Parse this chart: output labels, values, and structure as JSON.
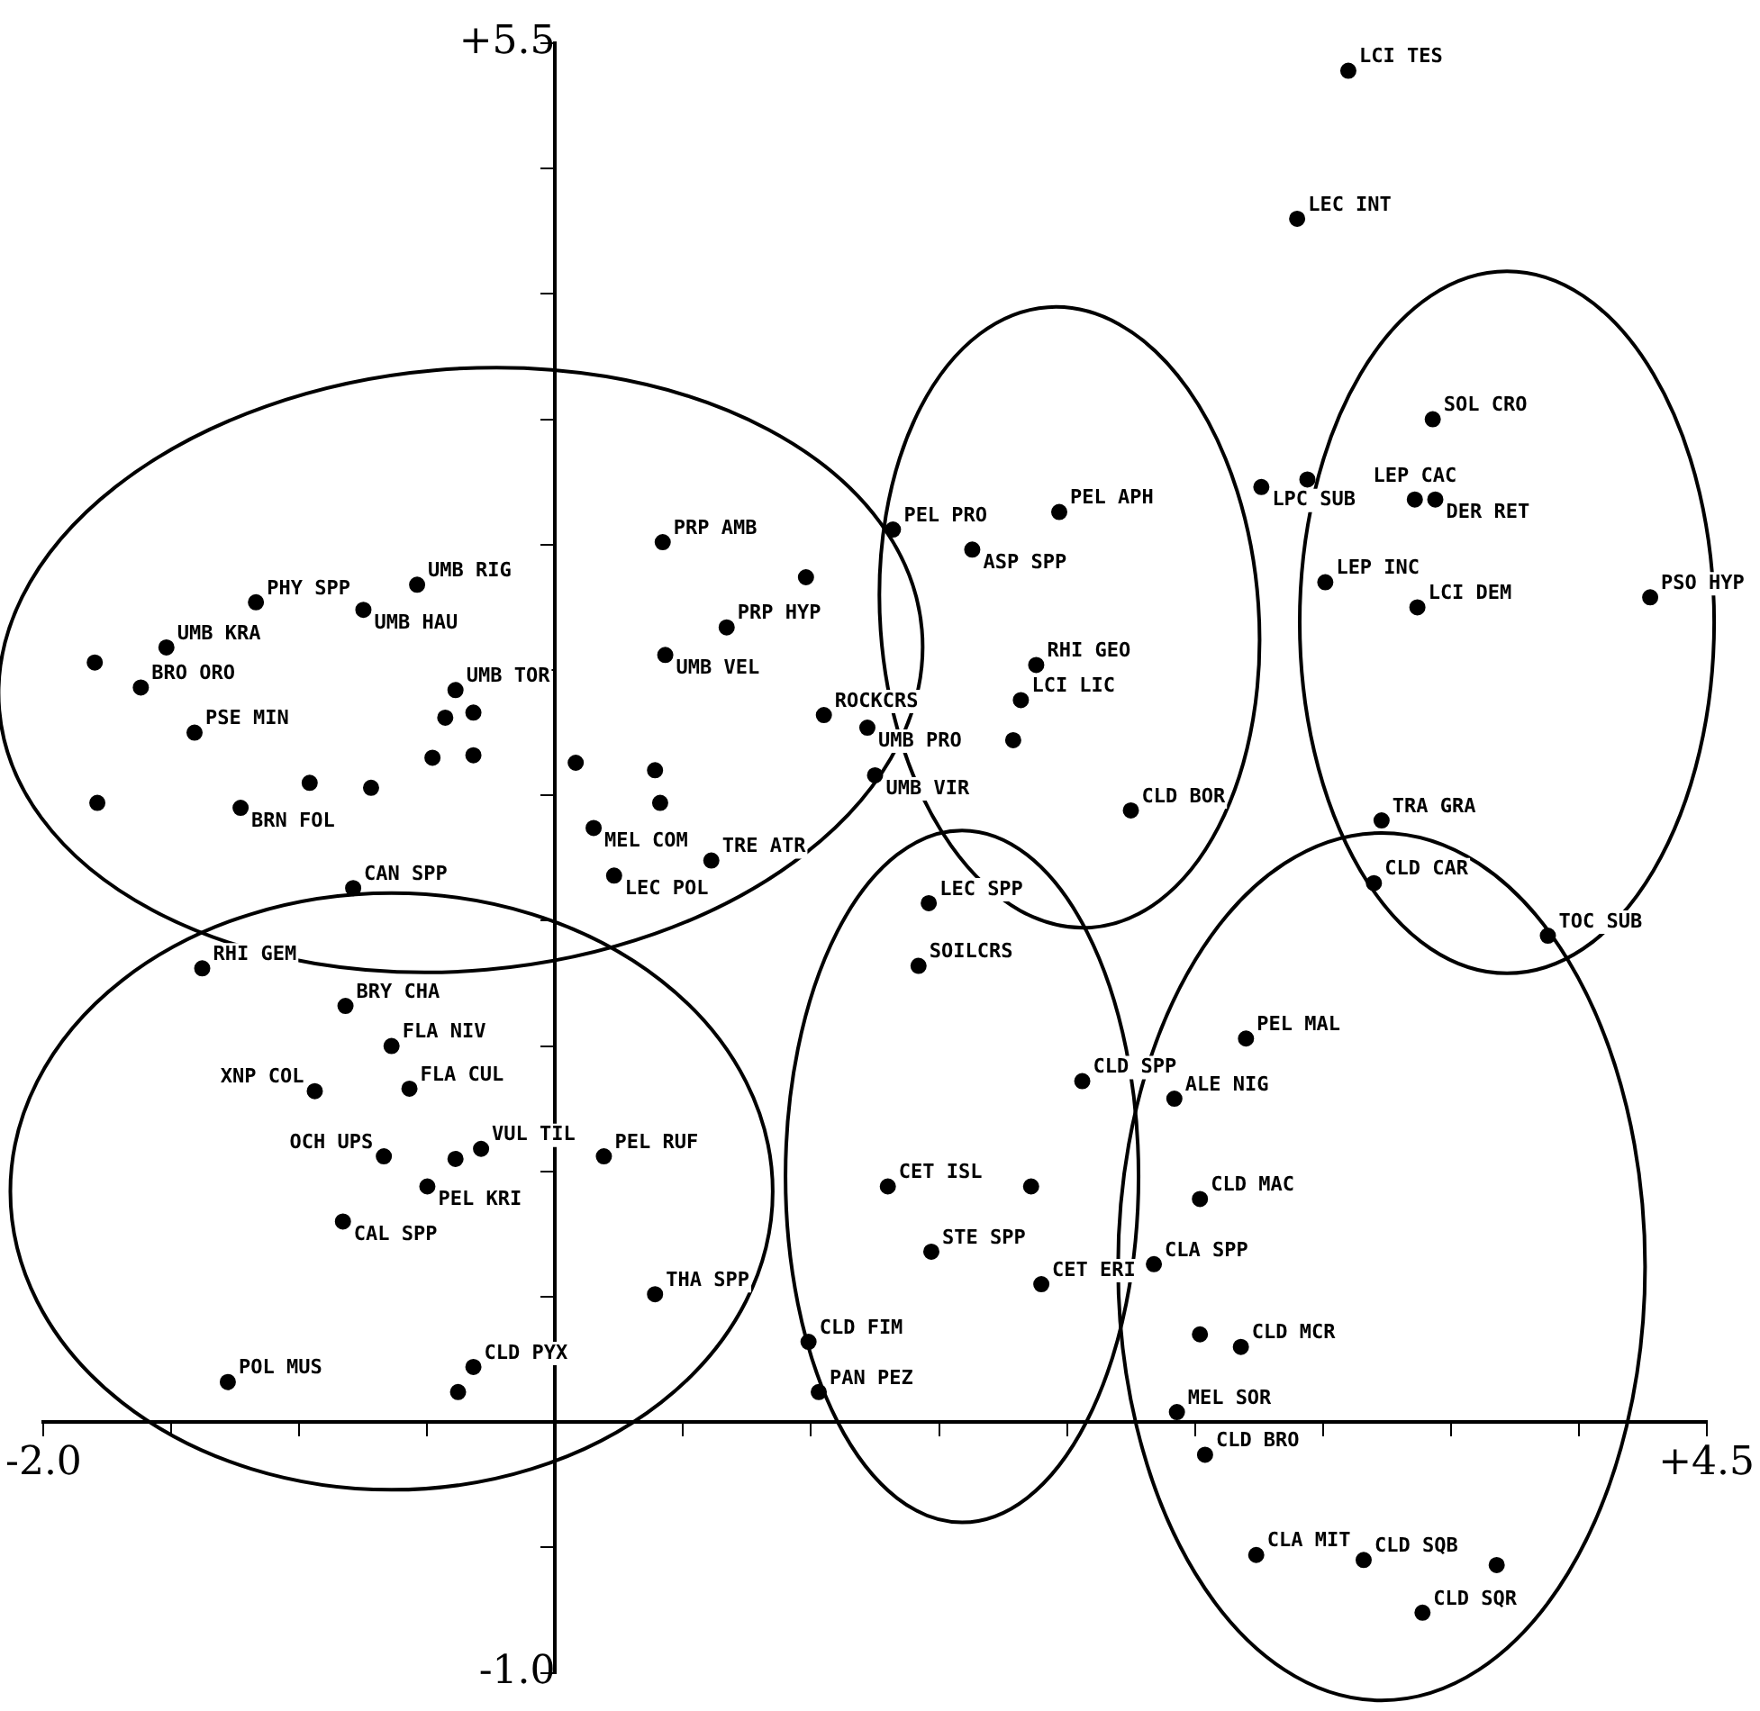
{
  "chart_data": {
    "type": "scatter",
    "marker": "circle",
    "color": "#000000",
    "xlim": [
      -2.0,
      4.5
    ],
    "ylim": [
      -1.0,
      5.5
    ],
    "xticks": [
      {
        "value": -2.0,
        "label": "-2.0"
      },
      {
        "value": -1.5,
        "label": null
      },
      {
        "value": -1.0,
        "label": null
      },
      {
        "value": -0.5,
        "label": null
      },
      {
        "value": 0.5,
        "label": null
      },
      {
        "value": 1.0,
        "label": null
      },
      {
        "value": 1.5,
        "label": null
      },
      {
        "value": 2.0,
        "label": null
      },
      {
        "value": 2.5,
        "label": null
      },
      {
        "value": 3.0,
        "label": null
      },
      {
        "value": 3.5,
        "label": null
      },
      {
        "value": 4.0,
        "label": null
      },
      {
        "value": 4.5,
        "label": "+4.5"
      }
    ],
    "yticks": [
      {
        "value": -1.0,
        "label": "-1.0"
      },
      {
        "value": -0.5,
        "label": null
      },
      {
        "value": 0.5,
        "label": null
      },
      {
        "value": 1.0,
        "label": null
      },
      {
        "value": 1.5,
        "label": null
      },
      {
        "value": 2.0,
        "label": null
      },
      {
        "value": 2.5,
        "label": null
      },
      {
        "value": 3.0,
        "label": null
      },
      {
        "value": 3.5,
        "label": null
      },
      {
        "value": 4.0,
        "label": null
      },
      {
        "value": 4.5,
        "label": null
      },
      {
        "value": 5.0,
        "label": null
      },
      {
        "value": 5.5,
        "label": "+5.5"
      }
    ],
    "x": [
      -1.17,
      -0.54,
      -0.75,
      -1.52,
      -1.8,
      -1.62,
      -0.39,
      -0.43,
      -0.32,
      -1.41,
      -0.48,
      -0.32,
      0.08,
      -0.96,
      -0.72,
      -1.79,
      -1.23,
      0.39,
      0.41,
      0.15,
      -0.79,
      0.23,
      0.61,
      -1.38,
      0.43,
      1.05,
      1.22,
      0.67,
      0.42,
      0.98,
      1.32,
      2.76,
      2.94,
      1.97,
      1.63,
      3.01,
      1.88,
      1.82,
      1.79,
      1.25,
      2.25,
      1.46,
      1.42,
      3.43,
      3.36,
      3.44,
      4.28,
      3.37,
      3.23,
      3.2,
      3.88,
      3.1,
      2.9,
      -0.82,
      -0.64,
      -0.94,
      -0.57,
      -0.67,
      -0.29,
      -0.39,
      -0.5,
      0.19,
      -0.83,
      0.39,
      -1.28,
      -0.32,
      -0.38,
      2.06,
      1.3,
      1.86,
      1.47,
      1.9,
      2.34,
      0.99,
      1.03,
      2.7,
      2.42,
      2.52,
      2.52,
      2.68,
      2.43,
      2.54,
      2.74,
      3.16,
      3.68,
      3.39
    ],
    "values": [
      3.27,
      3.34,
      3.24,
      3.09,
      3.03,
      2.93,
      2.92,
      2.81,
      2.83,
      2.75,
      2.65,
      2.66,
      2.63,
      2.55,
      2.53,
      2.47,
      2.45,
      2.6,
      2.47,
      2.37,
      2.13,
      2.18,
      2.24,
      1.81,
      3.06,
      2.82,
      2.77,
      3.17,
      3.51,
      3.37,
      3.56,
      3.73,
      3.76,
      3.63,
      3.48,
      3.35,
      3.02,
      2.88,
      2.72,
      2.58,
      2.44,
      2.07,
      1.82,
      4.0,
      3.68,
      3.68,
      3.29,
      3.25,
      2.4,
      2.15,
      1.94,
      5.39,
      4.8,
      1.66,
      1.5,
      1.32,
      1.33,
      1.06,
      1.09,
      1.05,
      0.94,
      1.06,
      0.8,
      0.51,
      0.16,
      0.22,
      0.12,
      1.36,
      0.94,
      0.94,
      0.68,
      0.55,
      0.63,
      0.32,
      0.12,
      1.53,
      1.29,
      0.89,
      0.35,
      0.3,
      0.04,
      -0.13,
      -0.53,
      -0.55,
      -0.57,
      -0.76
    ],
    "annotations": [
      {
        "text": "PHY SPP",
        "x": -1.17,
        "y": 3.27
      },
      {
        "text": "UMB RIG",
        "x": -0.54,
        "y": 3.34
      },
      {
        "text": "UMB HAU",
        "x": -0.75,
        "y": 3.24
      },
      {
        "text": "UMB KRA",
        "x": -1.52,
        "y": 3.09
      },
      {
        "text": "BRO ORO",
        "x": -1.62,
        "y": 2.93
      },
      {
        "text": "UMB TOR",
        "x": -0.39,
        "y": 2.92
      },
      {
        "text": "PSE MIN",
        "x": -1.41,
        "y": 2.75
      },
      {
        "text": "BRN FOL",
        "x": -1.23,
        "y": 2.45
      },
      {
        "text": "MEL COM",
        "x": 0.15,
        "y": 2.37
      },
      {
        "text": "CAN SPP",
        "x": -0.79,
        "y": 2.13
      },
      {
        "text": "LEC POL",
        "x": 0.23,
        "y": 2.18
      },
      {
        "text": "TRE ATR",
        "x": 0.61,
        "y": 2.24
      },
      {
        "text": "RHI GEM",
        "x": -1.38,
        "y": 1.81
      },
      {
        "text": "UMB VEL",
        "x": 0.43,
        "y": 3.06
      },
      {
        "text": "ROCKCRS",
        "x": 1.05,
        "y": 2.82
      },
      {
        "text": "UMB PRO",
        "x": 1.22,
        "y": 2.77
      },
      {
        "text": "PRP HYP",
        "x": 0.67,
        "y": 3.17
      },
      {
        "text": "PRP AMB",
        "x": 0.42,
        "y": 3.51
      },
      {
        "text": "PEL PRO",
        "x": 1.32,
        "y": 3.56
      },
      {
        "text": "LPC SUB",
        "x": 2.76,
        "y": 3.73
      },
      {
        "text": "PEL APH",
        "x": 1.97,
        "y": 3.63
      },
      {
        "text": "ASP SPP",
        "x": 1.63,
        "y": 3.48
      },
      {
        "text": "LEP INC",
        "x": 3.01,
        "y": 3.35
      },
      {
        "text": "RHI GEO",
        "x": 1.88,
        "y": 3.02
      },
      {
        "text": "LCI LIC",
        "x": 1.82,
        "y": 2.88
      },
      {
        "text": "UMB VIR",
        "x": 1.25,
        "y": 2.58
      },
      {
        "text": "CLD BOR",
        "x": 2.25,
        "y": 2.44
      },
      {
        "text": "LEC SPP",
        "x": 1.46,
        "y": 2.07
      },
      {
        "text": "SOILCRS",
        "x": 1.42,
        "y": 1.82
      },
      {
        "text": "SOL CRO",
        "x": 3.43,
        "y": 4.0
      },
      {
        "text": "LEP CAC",
        "x": 3.36,
        "y": 3.68
      },
      {
        "text": "DER RET",
        "x": 3.44,
        "y": 3.68
      },
      {
        "text": "PSO HYP",
        "x": 4.28,
        "y": 3.29
      },
      {
        "text": "LCI DEM",
        "x": 3.37,
        "y": 3.25
      },
      {
        "text": "TRA GRA",
        "x": 3.23,
        "y": 2.4
      },
      {
        "text": "CLD CAR",
        "x": 3.2,
        "y": 2.15
      },
      {
        "text": "TOC SUB",
        "x": 3.88,
        "y": 1.94
      },
      {
        "text": "LCI TES",
        "x": 3.1,
        "y": 5.39
      },
      {
        "text": "LEC INT",
        "x": 2.9,
        "y": 4.8
      },
      {
        "text": "BRY CHA",
        "x": -0.82,
        "y": 1.66
      },
      {
        "text": "FLA NIV",
        "x": -0.64,
        "y": 1.5
      },
      {
        "text": "XNP COL",
        "x": -0.94,
        "y": 1.32
      },
      {
        "text": "FLA CUL",
        "x": -0.57,
        "y": 1.33
      },
      {
        "text": "OCH UPS",
        "x": -0.67,
        "y": 1.06
      },
      {
        "text": "VUL TIL",
        "x": -0.29,
        "y": 1.09
      },
      {
        "text": "PEL KRI",
        "x": -0.5,
        "y": 0.94
      },
      {
        "text": "PEL RUF",
        "x": 0.19,
        "y": 1.06
      },
      {
        "text": "CAL SPP",
        "x": -0.83,
        "y": 0.8
      },
      {
        "text": "THA SPP",
        "x": 0.39,
        "y": 0.51
      },
      {
        "text": "POL MUS",
        "x": -1.28,
        "y": 0.16
      },
      {
        "text": "CLD PYX",
        "x": -0.32,
        "y": 0.22
      },
      {
        "text": "CLD SPP",
        "x": 2.06,
        "y": 1.36
      },
      {
        "text": "CET ISL",
        "x": 1.3,
        "y": 0.94
      },
      {
        "text": "STE SPP",
        "x": 1.47,
        "y": 0.68
      },
      {
        "text": "CET ERI",
        "x": 1.9,
        "y": 0.55
      },
      {
        "text": "CLA SPP",
        "x": 2.34,
        "y": 0.63
      },
      {
        "text": "CLD FIM",
        "x": 0.99,
        "y": 0.32
      },
      {
        "text": "PAN PEZ",
        "x": 1.03,
        "y": 0.12
      },
      {
        "text": "PEL MAL",
        "x": 2.7,
        "y": 1.53
      },
      {
        "text": "ALE NIG",
        "x": 2.42,
        "y": 1.29
      },
      {
        "text": "CLD MAC",
        "x": 2.52,
        "y": 0.89
      },
      {
        "text": "CLD MCR",
        "x": 2.68,
        "y": 0.3
      },
      {
        "text": "MEL SOR",
        "x": 2.43,
        "y": 0.04
      },
      {
        "text": "CLD BRO",
        "x": 2.54,
        "y": -0.13
      },
      {
        "text": "CLA MIT",
        "x": 2.74,
        "y": -0.53
      },
      {
        "text": "CLD SQB",
        "x": 3.16,
        "y": -0.55
      },
      {
        "text": "CLD SQR",
        "x": 3.39,
        "y": -0.76
      }
    ]
  }
}
